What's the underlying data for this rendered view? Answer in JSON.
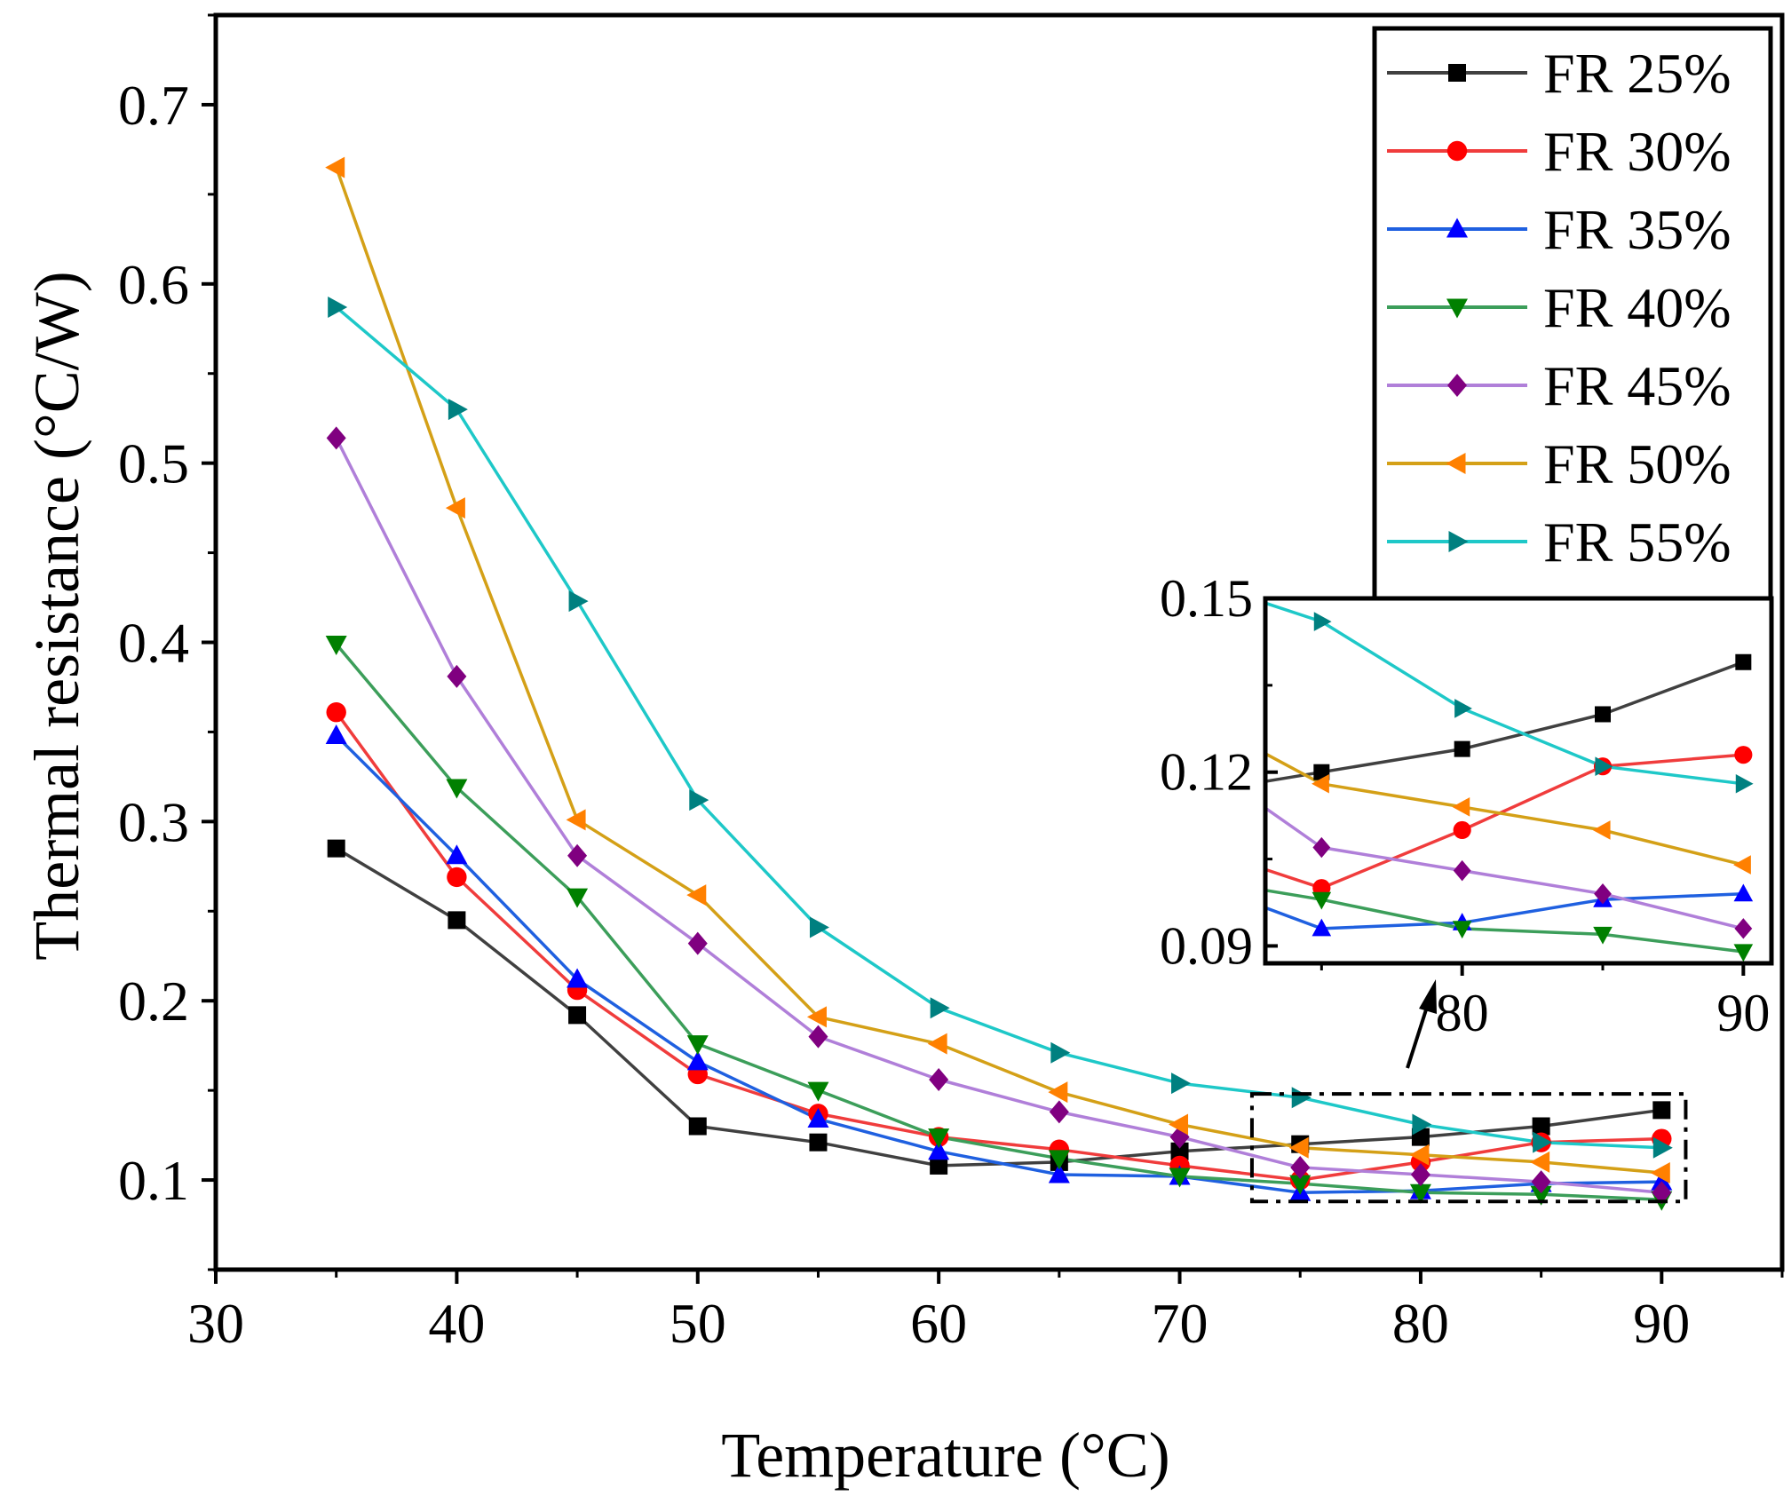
{
  "chart_data": {
    "type": "line",
    "title": "",
    "xlabel": "Temperature (°C)",
    "ylabel": "Thermal resistance (°C/W)",
    "xlim": [
      30,
      95
    ],
    "ylim": [
      0.05,
      0.75
    ],
    "xticks": [
      30,
      40,
      50,
      60,
      70,
      80,
      90
    ],
    "xtick_labels": [
      "30",
      "40",
      "50",
      "60",
      "70",
      "80",
      "90"
    ],
    "yticks": [
      0.1,
      0.2,
      0.3,
      0.4,
      0.5,
      0.6,
      0.7
    ],
    "ytick_labels": [
      "0.1",
      "0.2",
      "0.3",
      "0.4",
      "0.5",
      "0.6",
      "0.7"
    ],
    "legend_position": "top-right",
    "x": [
      35,
      40,
      45,
      50,
      55,
      60,
      65,
      70,
      75,
      80,
      85,
      90
    ],
    "series": [
      {
        "name": "FR 25%",
        "color": "#404040",
        "marker": "square",
        "values": [
          0.285,
          0.245,
          0.192,
          0.13,
          0.121,
          0.108,
          0.11,
          0.116,
          0.12,
          0.124,
          0.13,
          0.139
        ]
      },
      {
        "name": "FR 30%",
        "color": "#f03c3c",
        "marker": "circle",
        "values": [
          0.361,
          0.269,
          0.206,
          0.159,
          0.137,
          0.124,
          0.117,
          0.108,
          0.1,
          0.11,
          0.121,
          0.123
        ]
      },
      {
        "name": "FR 35%",
        "color": "#1f60e0",
        "marker": "triangle-up",
        "values": [
          0.348,
          0.281,
          0.212,
          0.166,
          0.134,
          0.116,
          0.103,
          0.102,
          0.093,
          0.094,
          0.098,
          0.099
        ]
      },
      {
        "name": "FR 40%",
        "color": "#3c9e5a",
        "marker": "triangle-down",
        "values": [
          0.399,
          0.319,
          0.258,
          0.176,
          0.15,
          0.124,
          0.112,
          0.102,
          0.098,
          0.093,
          0.092,
          0.089
        ]
      },
      {
        "name": "FR 45%",
        "color": "#b07fd9",
        "marker": "diamond",
        "values": [
          0.514,
          0.381,
          0.281,
          0.232,
          0.18,
          0.156,
          0.138,
          0.124,
          0.107,
          0.103,
          0.099,
          0.093
        ]
      },
      {
        "name": "FR 50%",
        "color": "#d4a017",
        "marker": "triangle-left",
        "values": [
          0.665,
          0.475,
          0.301,
          0.259,
          0.191,
          0.176,
          0.149,
          0.131,
          0.118,
          0.114,
          0.11,
          0.104
        ]
      },
      {
        "name": "FR 55%",
        "color": "#1ec8c8",
        "marker": "triangle-right",
        "values": [
          0.587,
          0.53,
          0.423,
          0.312,
          0.241,
          0.196,
          0.171,
          0.154,
          0.146,
          0.131,
          0.121,
          0.118
        ]
      }
    ],
    "inset": {
      "xlim": [
        73,
        91
      ],
      "ylim": [
        0.087,
        0.15
      ],
      "xticks": [
        80,
        90
      ],
      "xtick_labels": [
        "80",
        "90"
      ],
      "yticks": [
        0.09,
        0.12,
        0.15
      ],
      "ytick_labels": [
        "0.09",
        "0.12",
        "0.15"
      ],
      "zoom_region": {
        "x": [
          73,
          91
        ],
        "y": [
          0.088,
          0.148
        ]
      }
    }
  },
  "colors": {
    "marker_square": "#000000",
    "marker_circle": "#ff0000",
    "marker_triangle_up": "#0000ff",
    "marker_triangle_down": "#008000",
    "marker_diamond": "#800080",
    "marker_triangle_left": "#ff8000",
    "marker_triangle_right": "#008080"
  }
}
